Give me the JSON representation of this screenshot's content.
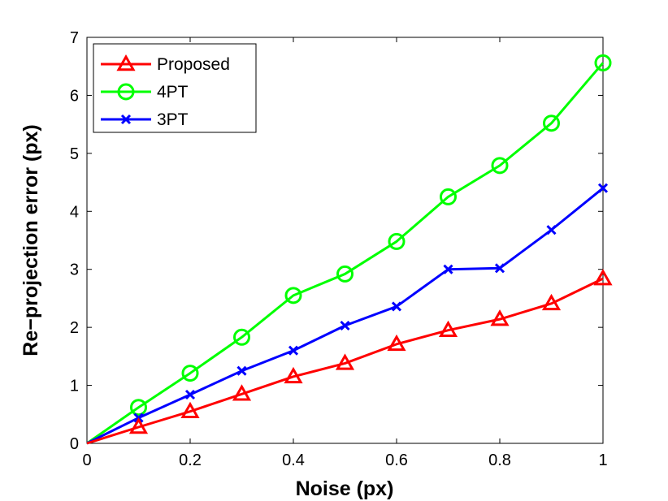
{
  "chart_data": {
    "type": "line",
    "title": "",
    "xlabel": "Noise (px)",
    "ylabel": "Re−projection error (px)",
    "xlim": [
      0,
      1
    ],
    "ylim": [
      0,
      7
    ],
    "xticks": [
      0,
      0.2,
      0.4,
      0.6,
      0.8,
      1
    ],
    "xtick_labels": [
      "0",
      "0.2",
      "0.4",
      "0.6",
      "0.8",
      "1"
    ],
    "yticks": [
      0,
      1,
      2,
      3,
      4,
      5,
      6,
      7
    ],
    "ytick_labels": [
      "0",
      "1",
      "2",
      "3",
      "4",
      "5",
      "6",
      "7"
    ],
    "grid": false,
    "legend_position": "top-left",
    "x": [
      0,
      0.1,
      0.2,
      0.3,
      0.4,
      0.5,
      0.6,
      0.7,
      0.8,
      0.9,
      1.0
    ],
    "series": [
      {
        "name": "Proposed",
        "color": "#ff0000",
        "marker": "triangle",
        "values": [
          0,
          0.28,
          0.55,
          0.85,
          1.15,
          1.38,
          1.71,
          1.95,
          2.14,
          2.41,
          2.84
        ]
      },
      {
        "name": "4PT",
        "color": "#00ff00",
        "marker": "circle",
        "values": [
          0,
          0.62,
          1.21,
          1.83,
          2.55,
          2.92,
          3.48,
          4.25,
          4.79,
          5.52,
          6.56
        ]
      },
      {
        "name": "3PT",
        "color": "#0000ff",
        "marker": "x",
        "values": [
          0,
          0.44,
          0.84,
          1.25,
          1.6,
          2.03,
          2.36,
          3.0,
          3.02,
          3.68,
          4.4
        ]
      }
    ]
  }
}
